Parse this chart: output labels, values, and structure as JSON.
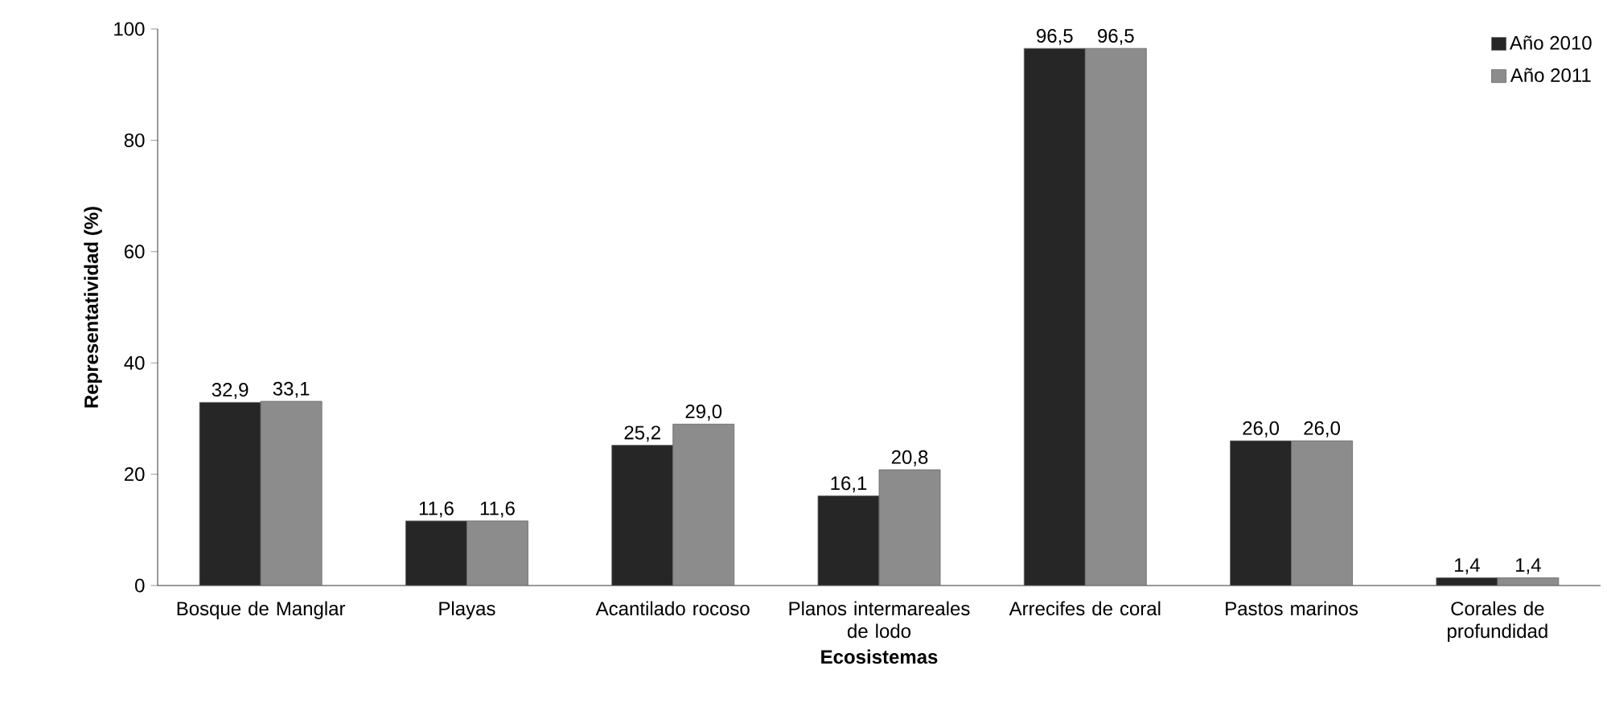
{
  "chart_data": {
    "type": "bar",
    "xlabel": "Ecosistemas",
    "ylabel": "Representatividad (%)",
    "categories": [
      "Bosque de Manglar",
      "Playas",
      "Acantilado rocoso",
      "Planos intermareales de lodo",
      "Arrecifes de coral",
      "Pastos marinos",
      "Corales de profundidad"
    ],
    "series": [
      {
        "name": "Año 2010",
        "color": "#262626",
        "values": [
          32.9,
          11.6,
          25.2,
          16.1,
          96.5,
          26.0,
          1.4
        ],
        "value_labels": [
          "32,9",
          "11,6",
          "25,2",
          "16,1",
          "96,5",
          "26,0",
          "1,4"
        ]
      },
      {
        "name": "Año 2011",
        "color": "#8c8c8c",
        "values": [
          33.1,
          11.6,
          29.0,
          20.8,
          96.5,
          26.0,
          1.4
        ],
        "value_labels": [
          "33,1",
          "11,6",
          "29,0",
          "20,8",
          "96,5",
          "26,0",
          "1,4"
        ]
      }
    ],
    "ylim": [
      0,
      100
    ],
    "yticks": [
      0,
      20,
      40,
      60,
      80,
      100
    ],
    "legend": "top right",
    "grid": false
  }
}
